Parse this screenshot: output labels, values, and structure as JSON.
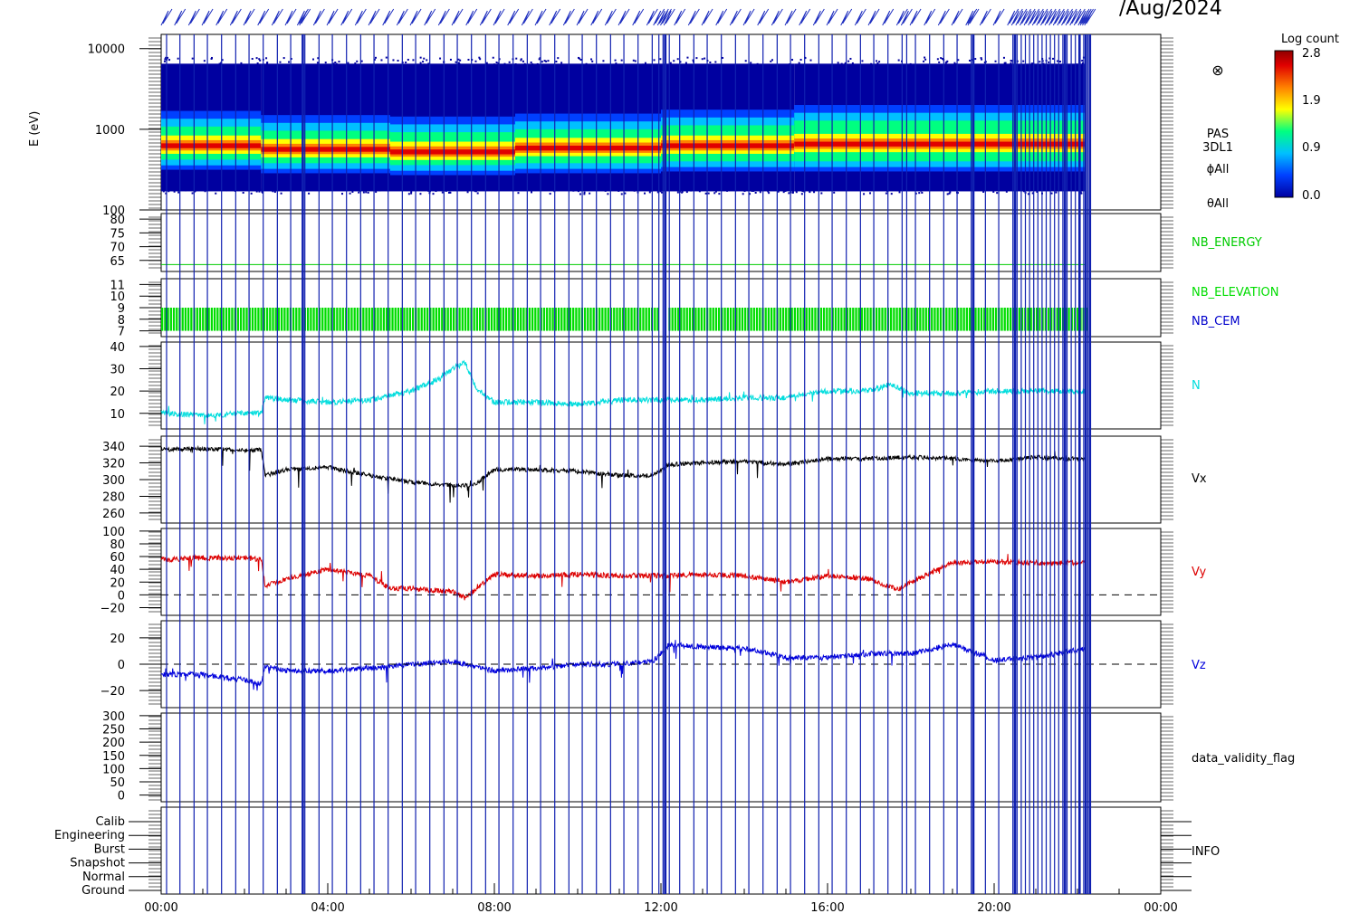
{
  "header": {
    "date_fragment": "/Aug/2024"
  },
  "colorbar": {
    "title": "Log count",
    "ticks": [
      "2.8",
      "1.9",
      "0.9",
      "0.0"
    ],
    "colors": [
      "#0000a0",
      "#0040ff",
      "#00c0ff",
      "#00ff80",
      "#ffff00",
      "#ff8000",
      "#e00000",
      "#900000"
    ]
  },
  "time_axis": {
    "ticks": [
      "00:00",
      "04:00",
      "08:00",
      "12:00",
      "16:00",
      "20:00",
      "00:00"
    ],
    "range_hours": [
      0,
      24
    ]
  },
  "chart_data": [
    {
      "type": "heatmap",
      "ylabel": "E (eV)",
      "yscale": "log",
      "ylim": [
        100,
        15000
      ],
      "yticks": [
        "10000",
        "1000",
        "100"
      ],
      "right_labels": [
        "PAS",
        "3DL1",
        "ϕAll",
        "θAll"
      ],
      "bands": [
        {
          "hours": [
            0,
            2.4
          ],
          "peak_ev": 620,
          "low_ev": 420,
          "high_ev": 1350
        },
        {
          "hours": [
            2.4,
            5.5
          ],
          "peak_ev": 560,
          "low_ev": 380,
          "high_ev": 1200
        },
        {
          "hours": [
            5.5,
            8.5
          ],
          "peak_ev": 520,
          "low_ev": 360,
          "high_ev": 1150
        },
        {
          "hours": [
            8.5,
            12
          ],
          "peak_ev": 580,
          "low_ev": 380,
          "high_ev": 1250
        },
        {
          "hours": [
            12,
            15.2
          ],
          "peak_ev": 620,
          "low_ev": 400,
          "high_ev": 1400
        },
        {
          "hours": [
            15.2,
            22.2
          ],
          "peak_ev": 650,
          "low_ev": 400,
          "high_ev": 1600
        }
      ]
    },
    {
      "type": "line",
      "yticks": [
        "80",
        "75",
        "70",
        "65"
      ],
      "ylim": [
        61,
        82
      ],
      "series": [
        {
          "name": "NB_ENERGY",
          "color": "#00cc00",
          "x": [
            0,
            22.2
          ],
          "values": [
            63.5,
            63.5
          ]
        }
      ]
    },
    {
      "type": "area",
      "yticks": [
        "11",
        "10",
        "9",
        "8",
        "7"
      ],
      "ylim": [
        6.5,
        11.5
      ],
      "series": [
        {
          "name": "NB_ELEVATION",
          "color": "#00dd00",
          "values_range": [
            7,
            9
          ],
          "x_range": [
            0,
            22.2
          ]
        },
        {
          "name": "NB_CEM",
          "color": "#0000cc"
        }
      ]
    },
    {
      "type": "line",
      "yticks": [
        "40",
        "30",
        "20",
        "10"
      ],
      "ylim": [
        3,
        42
      ],
      "series": [
        {
          "name": "N",
          "color": "#00dddd",
          "x": [
            0,
            1,
            2,
            2.4,
            2.5,
            3,
            4,
            5,
            6,
            6.5,
            7,
            7.3,
            7.6,
            8,
            9,
            10,
            11,
            12,
            13,
            14,
            15,
            16,
            17,
            17.5,
            18,
            19,
            20,
            21,
            22.2
          ],
          "values": [
            10,
            9,
            10,
            10,
            17,
            16,
            15,
            16,
            20,
            24,
            30,
            33,
            20,
            15,
            15,
            14,
            16,
            16,
            16,
            17,
            17,
            20,
            20,
            23,
            19,
            19,
            20,
            20,
            20
          ]
        }
      ]
    },
    {
      "type": "line",
      "yticks": [
        "340",
        "320",
        "300",
        "280",
        "260"
      ],
      "ylim": [
        248,
        352
      ],
      "series": [
        {
          "name": "Vx",
          "color": "#000000",
          "x": [
            0,
            1,
            2,
            2.4,
            2.5,
            3,
            4,
            5,
            6,
            7,
            7.5,
            8,
            9,
            10,
            11,
            11.8,
            12.2,
            13,
            14,
            15,
            16,
            17,
            18,
            19,
            20,
            21,
            22.2
          ],
          "values": [
            336,
            337,
            335,
            336,
            305,
            312,
            315,
            305,
            297,
            293,
            293,
            312,
            312,
            310,
            305,
            305,
            318,
            320,
            322,
            318,
            325,
            325,
            327,
            325,
            322,
            327,
            324
          ]
        }
      ]
    },
    {
      "type": "line",
      "yticks": [
        "100",
        "80",
        "60",
        "40",
        "20",
        "0",
        "−20"
      ],
      "ylim": [
        -32,
        104
      ],
      "zero_line": true,
      "series": [
        {
          "name": "Vy",
          "color": "#dd0000",
          "x": [
            0,
            1,
            2,
            2.4,
            2.5,
            3,
            4,
            5,
            5.5,
            6,
            7,
            7.3,
            8,
            9,
            10,
            11,
            12,
            13,
            14,
            15,
            16,
            17,
            17.7,
            18,
            19,
            20,
            21,
            22.2
          ],
          "values": [
            55,
            58,
            58,
            55,
            15,
            25,
            40,
            30,
            10,
            10,
            5,
            -5,
            32,
            30,
            32,
            30,
            30,
            32,
            30,
            20,
            30,
            25,
            8,
            20,
            50,
            52,
            50,
            50
          ]
        }
      ]
    },
    {
      "type": "line",
      "yticks": [
        "20",
        "0",
        "−20"
      ],
      "ylim": [
        -33,
        33
      ],
      "zero_line": true,
      "series": [
        {
          "name": "Vz",
          "color": "#0000dd",
          "x": [
            0,
            1,
            2,
            2.4,
            2.5,
            3,
            4,
            5,
            6,
            7,
            8,
            9,
            10,
            11,
            11.8,
            12.2,
            13,
            14,
            15,
            16,
            17,
            18,
            19,
            20,
            21,
            22.2
          ],
          "values": [
            -8,
            -8,
            -12,
            -15,
            -2,
            -5,
            -5,
            -3,
            0,
            2,
            -5,
            -3,
            0,
            0,
            2,
            15,
            13,
            12,
            5,
            5,
            8,
            8,
            15,
            3,
            5,
            12
          ]
        }
      ]
    },
    {
      "type": "line",
      "yticks": [
        "300",
        "250",
        "200",
        "150",
        "100",
        "50",
        "0"
      ],
      "ylim": [
        -25,
        310
      ],
      "series": [
        {
          "name": "data_validity_flag",
          "color": "#000000",
          "x": [],
          "values": []
        }
      ]
    },
    {
      "type": "line",
      "yticks": [
        "Calib",
        "Engineering",
        "Burst",
        "Snapshot",
        "Normal",
        "Ground"
      ],
      "series": [
        {
          "name": "INFO",
          "color": "#000000",
          "x": [],
          "values": []
        }
      ]
    }
  ],
  "vertical_markers_hours": [
    0.13,
    0.45,
    0.79,
    1.11,
    1.45,
    1.79,
    2.11,
    2.45,
    2.79,
    3.11,
    3.4,
    3.45,
    3.79,
    4.11,
    4.45,
    4.79,
    5.11,
    5.45,
    5.79,
    6.11,
    6.45,
    6.79,
    7.11,
    7.45,
    7.79,
    8.11,
    8.45,
    8.79,
    9.11,
    9.45,
    9.79,
    10.11,
    10.45,
    10.79,
    11.11,
    11.45,
    11.79,
    11.95,
    12.05,
    12.12,
    12.2,
    12.45,
    12.79,
    13.11,
    13.45,
    13.79,
    14.11,
    14.45,
    14.79,
    15.11,
    15.45,
    15.79,
    16.11,
    16.45,
    16.79,
    17.11,
    17.45,
    17.79,
    17.9,
    18.11,
    18.45,
    18.79,
    19.11,
    19.45,
    19.5,
    19.79,
    20.11,
    20.45,
    20.55,
    20.65,
    20.75,
    20.85,
    20.95,
    21.05,
    21.15,
    21.25,
    21.35,
    21.45,
    21.55,
    21.65,
    21.75,
    21.85,
    21.95,
    22.05,
    22.15,
    22.2,
    22.25,
    22.3
  ],
  "thick_markers_hours": [
    3.4,
    12.1,
    19.5,
    20.5,
    21.7,
    22.05,
    22.2,
    22.3
  ]
}
